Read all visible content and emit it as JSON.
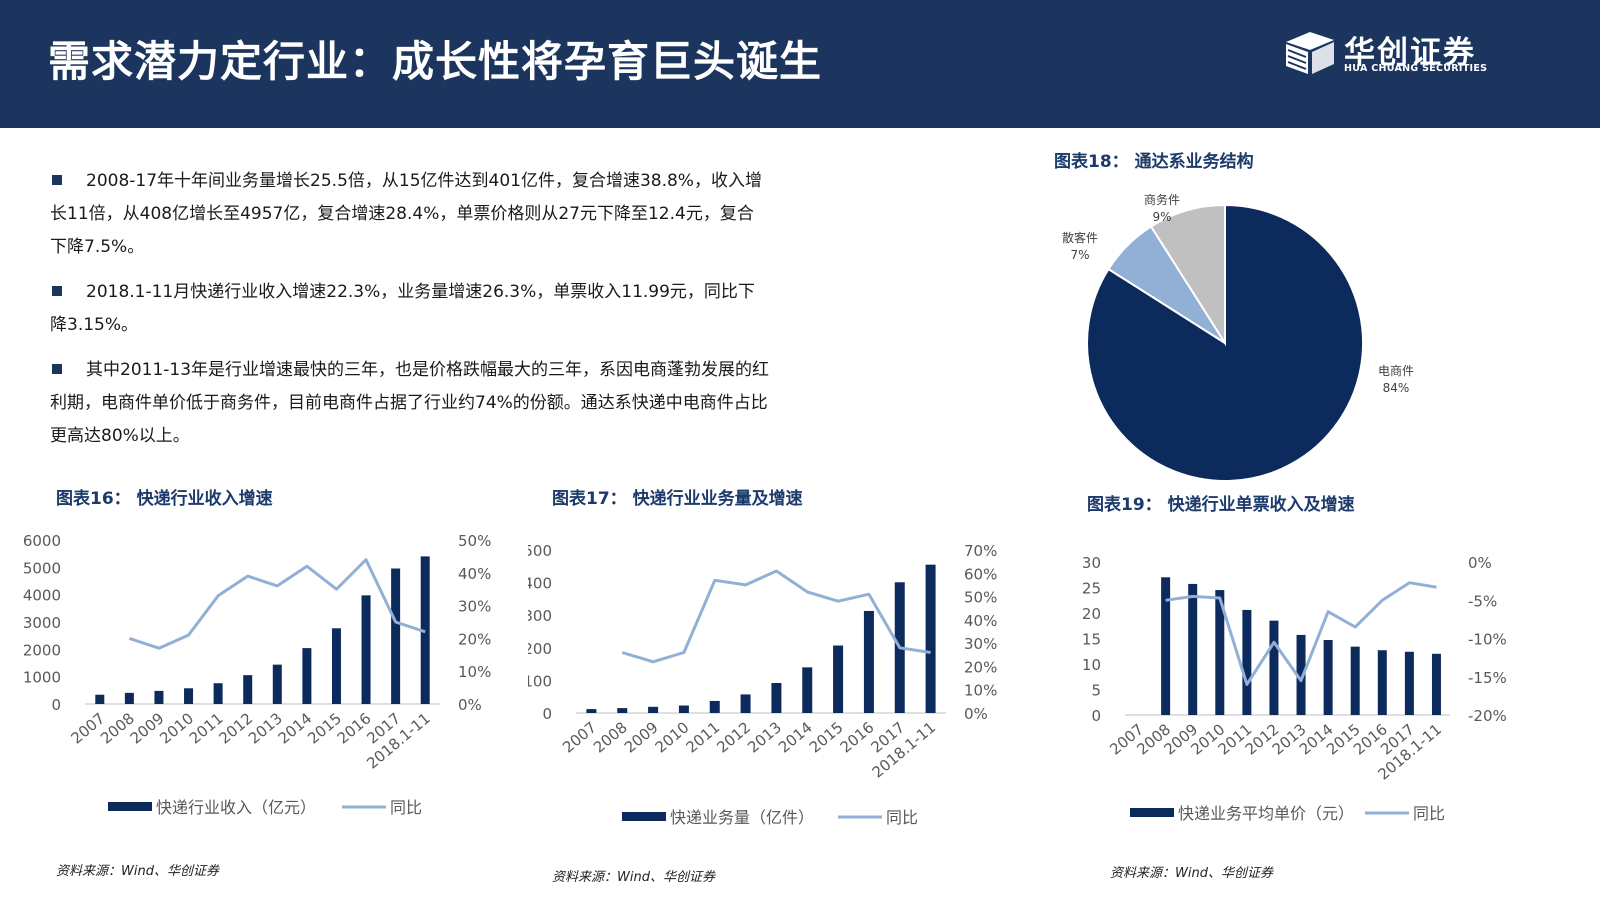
{
  "header": {
    "title": "需求潜力定行业：成长性将孕育巨头诞生",
    "logo_cn": "华创证券",
    "logo_en": "HUA CHUANG SECURITIES"
  },
  "bullets": [
    "2008-17年十年间业务量增长25.5倍，从15亿件达到401亿件，复合增速38.8%，收入增长11倍，从408亿增长至4957亿，复合增速28.4%，单票价格则从27元下降至12.4元，复合下降7.5%。",
    "2018.1-11月快递行业收入增速22.3%，业务量增速26.3%，单票收入11.99元，同比下降3.15%。",
    "其中2011-13年是行业增速最快的三年，也是价格跌幅最大的三年，系因电商蓬勃发展的红利期，电商件单价低于商务件，目前电商件占据了行业约74%的份额。通达系快递中电商件占比更高达80%以上。"
  ],
  "figures": {
    "fig16_title": "图表16： 快递行业收入增速",
    "fig17_title": "图表17： 快递行业业务量及增速",
    "fig18_title": "图表18： 通达系业务结构",
    "fig19_title": "图表19： 快递行业单票收入及增速",
    "source": "资料来源：Wind、华创证券"
  },
  "colors": {
    "navy": "#0d2a5c",
    "light_line": "#92b0d6",
    "header_bg": "#1c355e"
  },
  "chart_data": [
    {
      "id": "fig16",
      "type": "bar",
      "categories": [
        "2007",
        "2008",
        "2009",
        "2010",
        "2011",
        "2012",
        "2013",
        "2014",
        "2015",
        "2016",
        "2017",
        "2018.1-11"
      ],
      "series": [
        {
          "name": "快递行业收入（亿元）",
          "type": "bar",
          "axis": "left",
          "values": [
            340,
            408,
            480,
            575,
            760,
            1055,
            1440,
            2045,
            2770,
            3975,
            4957,
            5400
          ]
        },
        {
          "name": "同比",
          "type": "line",
          "axis": "right",
          "values": [
            null,
            20,
            17,
            21,
            33,
            39,
            36,
            42,
            35,
            44,
            25,
            22
          ]
        }
      ],
      "y_left": {
        "min": 0,
        "max": 6000,
        "ticks": [
          "0",
          "1000",
          "2000",
          "3000",
          "4000",
          "5000",
          "6000"
        ]
      },
      "y_right": {
        "min": 0,
        "max": 50,
        "ticks": [
          "0%",
          "10%",
          "20%",
          "30%",
          "40%",
          "50%"
        ]
      }
    },
    {
      "id": "fig17",
      "type": "bar",
      "categories": [
        "2007",
        "2008",
        "2009",
        "2010",
        "2011",
        "2012",
        "2013",
        "2014",
        "2015",
        "2016",
        "2017",
        "2018.1-11"
      ],
      "series": [
        {
          "name": "快递业务量（亿件）",
          "type": "bar",
          "axis": "left",
          "values": [
            12,
            15,
            19,
            23,
            37,
            57,
            92,
            140,
            207,
            313,
            401,
            455
          ]
        },
        {
          "name": "同比",
          "type": "line",
          "axis": "right",
          "values": [
            null,
            26,
            22,
            26,
            57,
            55,
            61,
            52,
            48,
            51,
            28,
            26
          ]
        }
      ],
      "y_left": {
        "min": 0,
        "max": 500,
        "ticks": [
          "0",
          "100",
          "200",
          "300",
          "400",
          "500"
        ]
      },
      "y_right": {
        "min": 0,
        "max": 70,
        "ticks": [
          "0%",
          "10%",
          "20%",
          "30%",
          "40%",
          "50%",
          "60%",
          "70%"
        ]
      }
    },
    {
      "id": "fig18",
      "type": "pie",
      "slices": [
        {
          "label": "电商件",
          "pct_label": "84%",
          "value": 84,
          "color": "#0d2a5c"
        },
        {
          "label": "散客件",
          "pct_label": "7%",
          "value": 7,
          "color": "#92b0d6"
        },
        {
          "label": "商务件",
          "pct_label": "9%",
          "value": 9,
          "color": "#c0c0c0"
        }
      ]
    },
    {
      "id": "fig19",
      "type": "bar",
      "categories": [
        "2007",
        "2008",
        "2009",
        "2010",
        "2011",
        "2012",
        "2013",
        "2014",
        "2015",
        "2016",
        "2017",
        "2018.1-11"
      ],
      "series": [
        {
          "name": "快递业务平均单价（元）",
          "type": "bar",
          "axis": "left",
          "values": [
            null,
            27,
            25.7,
            24.5,
            20.6,
            18.5,
            15.7,
            14.7,
            13.4,
            12.7,
            12.4,
            12
          ]
        },
        {
          "name": "同比",
          "type": "line",
          "axis": "right",
          "values": [
            null,
            -5,
            -4.5,
            -4.7,
            -16,
            -10.5,
            -15.5,
            -6.5,
            -8.5,
            -5,
            -2.7,
            -3.3
          ]
        }
      ],
      "y_left": {
        "min": 0,
        "max": 30,
        "ticks": [
          "0",
          "5",
          "10",
          "15",
          "20",
          "25",
          "30"
        ]
      },
      "y_right": {
        "min": -20,
        "max": 0,
        "ticks": [
          "-20%",
          "-15%",
          "-10%",
          "-5%",
          "0%"
        ]
      }
    }
  ]
}
